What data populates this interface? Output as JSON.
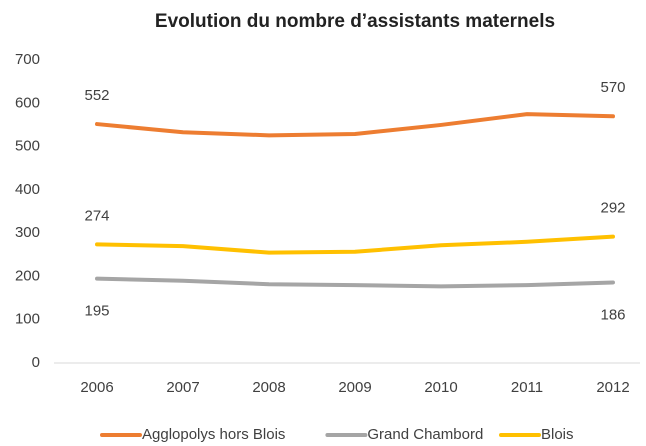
{
  "chart_data": {
    "type": "line",
    "title": "Evolution du nombre d’assistants maternels",
    "categories": [
      "2006",
      "2007",
      "2008",
      "2009",
      "2010",
      "2011",
      "2012"
    ],
    "series": [
      {
        "name": "Agglopolys hors Blois",
        "color": "#ed7d31",
        "values": [
          552,
          533,
          526,
          529,
          550,
          575,
          570
        ],
        "value_labels": [
          "552",
          null,
          null,
          null,
          null,
          null,
          "570"
        ],
        "label_position": "above"
      },
      {
        "name": "Grand Chambord",
        "color": "#a5a5a5",
        "values": [
          195,
          190,
          182,
          180,
          177,
          180,
          186
        ],
        "value_labels": [
          "195",
          null,
          null,
          null,
          null,
          null,
          "186"
        ],
        "label_position": "below"
      },
      {
        "name": "Blois",
        "color": "#ffc000",
        "values": [
          274,
          270,
          255,
          257,
          272,
          280,
          292
        ],
        "value_labels": [
          "274",
          null,
          null,
          null,
          null,
          null,
          "292"
        ],
        "label_position": "above"
      }
    ],
    "ylim": [
      0,
      700
    ],
    "yticks": [
      0,
      100,
      200,
      300,
      400,
      500,
      600,
      700
    ],
    "grid": false,
    "legend": "bottom"
  }
}
